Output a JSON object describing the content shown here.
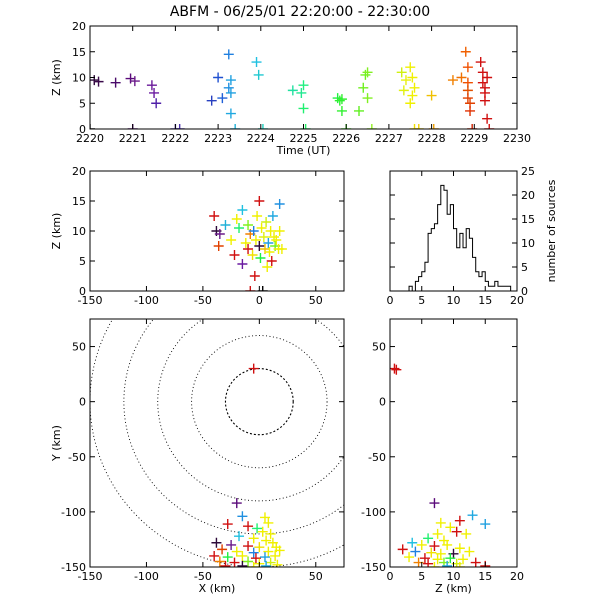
{
  "title": "ABFM - 06/25/01 22:20:00 - 22:30:00",
  "chart_data": [
    {
      "id": "time_height",
      "type": "scatter",
      "xlabel": "Time (UT)",
      "ylabel": "Z (km)",
      "xlim": [
        2220,
        2230
      ],
      "ylim": [
        0,
        20
      ],
      "xticks": [
        "2220",
        "2221",
        "2222",
        "2223",
        "2224",
        "2225",
        "2226",
        "2227",
        "2228",
        "2229",
        "2230"
      ],
      "yticks": [
        "0",
        "5",
        "10",
        "15",
        "20"
      ],
      "points": [
        {
          "x": 2220.0,
          "y": 0,
          "c": "#000000"
        },
        {
          "x": 2220.1,
          "y": 9.5,
          "c": "#2d0a3a"
        },
        {
          "x": 2220.2,
          "y": 9.2,
          "c": "#3a0a4a"
        },
        {
          "x": 2220.6,
          "y": 9.0,
          "c": "#4a0a6a"
        },
        {
          "x": 2220.95,
          "y": 9.8,
          "c": "#5a0a7a"
        },
        {
          "x": 2221.0,
          "y": 0,
          "c": "#5a0a7a"
        },
        {
          "x": 2221.05,
          "y": 9.3,
          "c": "#6a1a8a"
        },
        {
          "x": 2221.45,
          "y": 8.5,
          "c": "#6a1a9a"
        },
        {
          "x": 2221.5,
          "y": 7.0,
          "c": "#6a1aa0"
        },
        {
          "x": 2221.55,
          "y": 5.0,
          "c": "#5020a8"
        },
        {
          "x": 2222.0,
          "y": 0,
          "c": "#4a30b0"
        },
        {
          "x": 2222.1,
          "y": 0,
          "c": "#4a30b0"
        },
        {
          "x": 2222.85,
          "y": 5.5,
          "c": "#2840c0"
        },
        {
          "x": 2223.0,
          "y": 10.0,
          "c": "#2050d0"
        },
        {
          "x": 2223.1,
          "y": 6.0,
          "c": "#2060d8"
        },
        {
          "x": 2223.25,
          "y": 14.5,
          "c": "#2080e0"
        },
        {
          "x": 2223.25,
          "y": 8.0,
          "c": "#2090e0"
        },
        {
          "x": 2223.3,
          "y": 7.0,
          "c": "#20a0e0"
        },
        {
          "x": 2223.3,
          "y": 3.0,
          "c": "#20a8e0"
        },
        {
          "x": 2223.3,
          "y": 9.5,
          "c": "#20a0e0"
        },
        {
          "x": 2223.4,
          "y": 0,
          "c": "#20b0d8"
        },
        {
          "x": 2223.9,
          "y": 13.0,
          "c": "#20c0e0"
        },
        {
          "x": 2223.95,
          "y": 10.5,
          "c": "#20c8d0"
        },
        {
          "x": 2224.05,
          "y": 0,
          "c": "#20d0c0"
        },
        {
          "x": 2224.75,
          "y": 7.5,
          "c": "#20e0a0"
        },
        {
          "x": 2224.95,
          "y": 7.0,
          "c": "#20e890"
        },
        {
          "x": 2225.0,
          "y": 8.5,
          "c": "#20f080"
        },
        {
          "x": 2225.0,
          "y": 4.0,
          "c": "#20f070"
        },
        {
          "x": 2225.05,
          "y": 0,
          "c": "#20f060"
        },
        {
          "x": 2225.8,
          "y": 6.0,
          "c": "#20f040"
        },
        {
          "x": 2225.85,
          "y": 5.5,
          "c": "#30f030"
        },
        {
          "x": 2225.9,
          "y": 5.8,
          "c": "#30f030"
        },
        {
          "x": 2225.9,
          "y": 3.5,
          "c": "#30f030"
        },
        {
          "x": 2226.0,
          "y": 0,
          "c": "#40f020"
        },
        {
          "x": 2226.3,
          "y": 3.5,
          "c": "#60f020"
        },
        {
          "x": 2226.4,
          "y": 8.0,
          "c": "#70f020"
        },
        {
          "x": 2226.45,
          "y": 10.5,
          "c": "#70f020"
        },
        {
          "x": 2226.5,
          "y": 6.0,
          "c": "#80f020"
        },
        {
          "x": 2226.5,
          "y": 11.0,
          "c": "#80f020"
        },
        {
          "x": 2226.6,
          "y": 0,
          "c": "#90f020"
        },
        {
          "x": 2227.3,
          "y": 11.0,
          "c": "#d0f010"
        },
        {
          "x": 2227.35,
          "y": 7.5,
          "c": "#e0f010"
        },
        {
          "x": 2227.4,
          "y": 9.5,
          "c": "#e8f010"
        },
        {
          "x": 2227.5,
          "y": 5.0,
          "c": "#f0f000"
        },
        {
          "x": 2227.5,
          "y": 12.0,
          "c": "#f0f000"
        },
        {
          "x": 2227.55,
          "y": 10.0,
          "c": "#f0f000"
        },
        {
          "x": 2227.55,
          "y": 6.5,
          "c": "#f0f000"
        },
        {
          "x": 2227.6,
          "y": 8.0,
          "c": "#f0f000"
        },
        {
          "x": 2227.6,
          "y": 0,
          "c": "#f0e000"
        },
        {
          "x": 2227.7,
          "y": 0,
          "c": "#f0d000"
        },
        {
          "x": 2228.0,
          "y": 6.5,
          "c": "#f0c000"
        },
        {
          "x": 2228.05,
          "y": 0,
          "c": "#f0a000"
        },
        {
          "x": 2228.5,
          "y": 9.5,
          "c": "#f08000"
        },
        {
          "x": 2228.7,
          "y": 10.0,
          "c": "#f07000"
        },
        {
          "x": 2228.8,
          "y": 15.0,
          "c": "#f06000"
        },
        {
          "x": 2228.85,
          "y": 12.0,
          "c": "#f05000"
        },
        {
          "x": 2228.85,
          "y": 9.0,
          "c": "#f05000"
        },
        {
          "x": 2228.85,
          "y": 7.5,
          "c": "#e05000"
        },
        {
          "x": 2228.85,
          "y": 6.0,
          "c": "#e04000"
        },
        {
          "x": 2228.9,
          "y": 5.0,
          "c": "#e04000"
        },
        {
          "x": 2228.9,
          "y": 3.5,
          "c": "#e03000"
        },
        {
          "x": 2228.95,
          "y": 0,
          "c": "#d02000"
        },
        {
          "x": 2229.15,
          "y": 13.0,
          "c": "#d01010"
        },
        {
          "x": 2229.2,
          "y": 11.0,
          "c": "#d01010"
        },
        {
          "x": 2229.2,
          "y": 9.0,
          "c": "#d01010"
        },
        {
          "x": 2229.25,
          "y": 8.0,
          "c": "#d01010"
        },
        {
          "x": 2229.25,
          "y": 7.0,
          "c": "#d01010"
        },
        {
          "x": 2229.25,
          "y": 5.5,
          "c": "#d01010"
        },
        {
          "x": 2229.3,
          "y": 10.0,
          "c": "#d01010"
        },
        {
          "x": 2229.3,
          "y": 2.0,
          "c": "#d01010"
        },
        {
          "x": 2229.35,
          "y": 0,
          "c": "#d01010"
        }
      ]
    },
    {
      "id": "x_z",
      "type": "scatter",
      "xlabel": "",
      "ylabel": "Z (km)",
      "xlim": [
        -150,
        75
      ],
      "ylim": [
        0,
        20
      ],
      "xticks": [
        "-150",
        "-100",
        "-50",
        "0",
        "50"
      ],
      "yticks": [
        "0",
        "5",
        "10",
        "15",
        "20"
      ],
      "points": [
        {
          "x": -40,
          "y": 12.5,
          "c": "#d01010"
        },
        {
          "x": -38,
          "y": 10.0,
          "c": "#2d0a3a"
        },
        {
          "x": -35,
          "y": 9.5,
          "c": "#6a1a8a"
        },
        {
          "x": -36,
          "y": 7.5,
          "c": "#e04000"
        },
        {
          "x": -30,
          "y": 11.0,
          "c": "#20b0d8"
        },
        {
          "x": -25,
          "y": 8.5,
          "c": "#f0f000"
        },
        {
          "x": -22,
          "y": 6.0,
          "c": "#d01010"
        },
        {
          "x": -20,
          "y": 12.0,
          "c": "#f0f000"
        },
        {
          "x": -18,
          "y": 10.5,
          "c": "#20f070"
        },
        {
          "x": -15,
          "y": 13.5,
          "c": "#20c0e0"
        },
        {
          "x": -15,
          "y": 4.5,
          "c": "#6a1aa0"
        },
        {
          "x": -12,
          "y": 8.0,
          "c": "#f0f000"
        },
        {
          "x": -10,
          "y": 11.0,
          "c": "#80f020"
        },
        {
          "x": -10,
          "y": 7.0,
          "c": "#d01010"
        },
        {
          "x": -8,
          "y": 9.5,
          "c": "#f08000"
        },
        {
          "x": -8,
          "y": 0,
          "c": "#d01010"
        },
        {
          "x": -6,
          "y": 6.0,
          "c": "#f0e000"
        },
        {
          "x": -5,
          "y": 10.0,
          "c": "#2080e0"
        },
        {
          "x": -4,
          "y": 2.5,
          "c": "#d01010"
        },
        {
          "x": -3,
          "y": 8.5,
          "c": "#f0f000"
        },
        {
          "x": -2,
          "y": 12.5,
          "c": "#f0f000"
        },
        {
          "x": 0,
          "y": 15.0,
          "c": "#d01010"
        },
        {
          "x": 0,
          "y": 7.5,
          "c": "#2d0a3a"
        },
        {
          "x": 1,
          "y": 5.5,
          "c": "#20f040"
        },
        {
          "x": 2,
          "y": 10.5,
          "c": "#f0f000"
        },
        {
          "x": 3,
          "y": 0,
          "c": "#000000"
        },
        {
          "x": 4,
          "y": 9.0,
          "c": "#e0f010"
        },
        {
          "x": 5,
          "y": 7.0,
          "c": "#f0c000"
        },
        {
          "x": 6,
          "y": 11.5,
          "c": "#d0f010"
        },
        {
          "x": 7,
          "y": 4.0,
          "c": "#f0f000"
        },
        {
          "x": 8,
          "y": 8.0,
          "c": "#20a0e0"
        },
        {
          "x": 9,
          "y": 6.5,
          "c": "#f0f000"
        },
        {
          "x": 10,
          "y": 10.0,
          "c": "#f0f000"
        },
        {
          "x": 11,
          "y": 5.0,
          "c": "#d01010"
        },
        {
          "x": 12,
          "y": 12.5,
          "c": "#20a8e0"
        },
        {
          "x": 13,
          "y": 9.0,
          "c": "#f0f000"
        },
        {
          "x": 14,
          "y": 7.5,
          "c": "#70f020"
        },
        {
          "x": 15,
          "y": 8.5,
          "c": "#f0f000"
        },
        {
          "x": 17,
          "y": 7.0,
          "c": "#f0f000"
        },
        {
          "x": 18,
          "y": 14.5,
          "c": "#2090e0"
        },
        {
          "x": 18,
          "y": 10.0,
          "c": "#f0f000"
        },
        {
          "x": 20,
          "y": 7.0,
          "c": "#f0f000"
        }
      ]
    },
    {
      "id": "histogram",
      "type": "step",
      "xlabel": "",
      "ylabel": "number of sources",
      "xlim": [
        0,
        20
      ],
      "ylim": [
        0,
        25
      ],
      "xticks": [
        "0",
        "5",
        "10",
        "15",
        "20"
      ],
      "yticks": [
        "0",
        "5",
        "10",
        "15",
        "20",
        "25"
      ],
      "bin_width": 0.5,
      "bin_start": 0,
      "counts": [
        0,
        0,
        0,
        0,
        0,
        0,
        1,
        0,
        2,
        3,
        4,
        6,
        12,
        13,
        14,
        18,
        22,
        21,
        16,
        18,
        13,
        9,
        12,
        9,
        13,
        11,
        7,
        4,
        3,
        4,
        2,
        1,
        1,
        2,
        1,
        1,
        1,
        1,
        0,
        0
      ]
    },
    {
      "id": "plan_view",
      "type": "scatter",
      "xlabel": "X (km)",
      "ylabel": "Y (km)",
      "xlim": [
        -150,
        75
      ],
      "ylim": [
        -150,
        75
      ],
      "xticks": [
        "-150",
        "-100",
        "-50",
        "0",
        "50"
      ],
      "yticks": [
        "-150",
        "-100",
        "-50",
        "0",
        "50"
      ],
      "range_rings_km": [
        30,
        60,
        90,
        120,
        150
      ],
      "points": [
        {
          "x": -5,
          "y": 30,
          "c": "#d01010"
        },
        {
          "x": -20,
          "y": -92,
          "c": "#5a0a7a"
        },
        {
          "x": -15,
          "y": -104,
          "c": "#2090e0"
        },
        {
          "x": -28,
          "y": -111,
          "c": "#d01010"
        },
        {
          "x": -10,
          "y": -113,
          "c": "#d01010"
        },
        {
          "x": 5,
          "y": -105,
          "c": "#f0f000"
        },
        {
          "x": 8,
          "y": -110,
          "c": "#f0f000"
        },
        {
          "x": -2,
          "y": -115,
          "c": "#20f070"
        },
        {
          "x": 3,
          "y": -118,
          "c": "#f0f000"
        },
        {
          "x": 10,
          "y": -120,
          "c": "#f0f000"
        },
        {
          "x": -18,
          "y": -122,
          "c": "#20c0e0"
        },
        {
          "x": -5,
          "y": -124,
          "c": "#f0f000"
        },
        {
          "x": 6,
          "y": -126,
          "c": "#f0f000"
        },
        {
          "x": 12,
          "y": -128,
          "c": "#f0f000"
        },
        {
          "x": -38,
          "y": -128,
          "c": "#2d0a3a"
        },
        {
          "x": -25,
          "y": -130,
          "c": "#6a1a8a"
        },
        {
          "x": -10,
          "y": -131,
          "c": "#d01010"
        },
        {
          "x": 0,
          "y": -132,
          "c": "#f0e000"
        },
        {
          "x": 15,
          "y": -132,
          "c": "#f0f000"
        },
        {
          "x": -33,
          "y": -134,
          "c": "#e04000"
        },
        {
          "x": -20,
          "y": -136,
          "c": "#f0f000"
        },
        {
          "x": -5,
          "y": -137,
          "c": "#2080e0"
        },
        {
          "x": 8,
          "y": -136,
          "c": "#f0f000"
        },
        {
          "x": 18,
          "y": -135,
          "c": "#f0f000"
        },
        {
          "x": -40,
          "y": -140,
          "c": "#d01010"
        },
        {
          "x": -28,
          "y": -141,
          "c": "#20f040"
        },
        {
          "x": -15,
          "y": -140,
          "c": "#f0f000"
        },
        {
          "x": -3,
          "y": -142,
          "c": "#d01010"
        },
        {
          "x": 5,
          "y": -141,
          "c": "#20a0e0"
        },
        {
          "x": 14,
          "y": -140,
          "c": "#f0f000"
        },
        {
          "x": -35,
          "y": -145,
          "c": "#f08000"
        },
        {
          "x": -22,
          "y": -146,
          "c": "#d01010"
        },
        {
          "x": -10,
          "y": -145,
          "c": "#80f020"
        },
        {
          "x": 0,
          "y": -147,
          "c": "#f0f000"
        },
        {
          "x": 10,
          "y": -146,
          "c": "#d0f010"
        },
        {
          "x": -30,
          "y": -149,
          "c": "#d01010"
        },
        {
          "x": -15,
          "y": -149,
          "c": "#2d0a3a"
        },
        {
          "x": -5,
          "y": -150,
          "c": "#f0f000"
        },
        {
          "x": 6,
          "y": -149,
          "c": "#20a8e0"
        },
        {
          "x": 16,
          "y": -148,
          "c": "#f0f000"
        }
      ]
    },
    {
      "id": "z_y",
      "type": "scatter",
      "xlabel": "Z (km)",
      "ylabel": "",
      "xlim": [
        0,
        20
      ],
      "ylim": [
        -150,
        75
      ],
      "xticks": [
        "0",
        "5",
        "10",
        "15",
        "20"
      ],
      "yticks": [
        "-150",
        "-100",
        "-50",
        "0",
        "50"
      ],
      "points": [
        {
          "x": 0.7,
          "y": 30,
          "c": "#d01010"
        },
        {
          "x": 1.0,
          "y": 29,
          "c": "#d01010"
        },
        {
          "x": 7.0,
          "y": -92,
          "c": "#5a0a7a"
        },
        {
          "x": 13.0,
          "y": -103,
          "c": "#20a8e0"
        },
        {
          "x": 15.0,
          "y": -111,
          "c": "#20a0e0"
        },
        {
          "x": 11.0,
          "y": -108,
          "c": "#d01010"
        },
        {
          "x": 8.0,
          "y": -110,
          "c": "#f0f000"
        },
        {
          "x": 9.5,
          "y": -114,
          "c": "#f0f000"
        },
        {
          "x": 10.5,
          "y": -118,
          "c": "#d01010"
        },
        {
          "x": 12.0,
          "y": -120,
          "c": "#f0f000"
        },
        {
          "x": 7.5,
          "y": -120,
          "c": "#f0f000"
        },
        {
          "x": 6.0,
          "y": -124,
          "c": "#20f070"
        },
        {
          "x": 8.5,
          "y": -126,
          "c": "#f0f000"
        },
        {
          "x": 3.5,
          "y": -128,
          "c": "#20c0e0"
        },
        {
          "x": 5.0,
          "y": -130,
          "c": "#f0f000"
        },
        {
          "x": 7.0,
          "y": -131,
          "c": "#d01010"
        },
        {
          "x": 9.0,
          "y": -130,
          "c": "#f0f000"
        },
        {
          "x": 11.0,
          "y": -133,
          "c": "#f0f000"
        },
        {
          "x": 2.0,
          "y": -134,
          "c": "#d01010"
        },
        {
          "x": 4.0,
          "y": -136,
          "c": "#2080e0"
        },
        {
          "x": 6.5,
          "y": -137,
          "c": "#f0e000"
        },
        {
          "x": 8.0,
          "y": -138,
          "c": "#f0f000"
        },
        {
          "x": 10.0,
          "y": -138,
          "c": "#2d0a3a"
        },
        {
          "x": 12.5,
          "y": -136,
          "c": "#f0f000"
        },
        {
          "x": 3.0,
          "y": -141,
          "c": "#f0f000"
        },
        {
          "x": 5.5,
          "y": -142,
          "c": "#d01010"
        },
        {
          "x": 7.5,
          "y": -143,
          "c": "#f0f000"
        },
        {
          "x": 9.5,
          "y": -142,
          "c": "#20f040"
        },
        {
          "x": 11.5,
          "y": -143,
          "c": "#f0f000"
        },
        {
          "x": 4.5,
          "y": -146,
          "c": "#f08000"
        },
        {
          "x": 6.0,
          "y": -147,
          "c": "#d01010"
        },
        {
          "x": 8.5,
          "y": -146,
          "c": "#80f020"
        },
        {
          "x": 10.5,
          "y": -147,
          "c": "#d0f010"
        },
        {
          "x": 13.5,
          "y": -146,
          "c": "#d01010"
        },
        {
          "x": 15.0,
          "y": -149,
          "c": "#d01010"
        },
        {
          "x": 7.0,
          "y": -150,
          "c": "#f0f000"
        },
        {
          "x": 9.0,
          "y": -149,
          "c": "#20a8e0"
        },
        {
          "x": 11.0,
          "y": -150,
          "c": "#f0f000"
        }
      ]
    }
  ]
}
